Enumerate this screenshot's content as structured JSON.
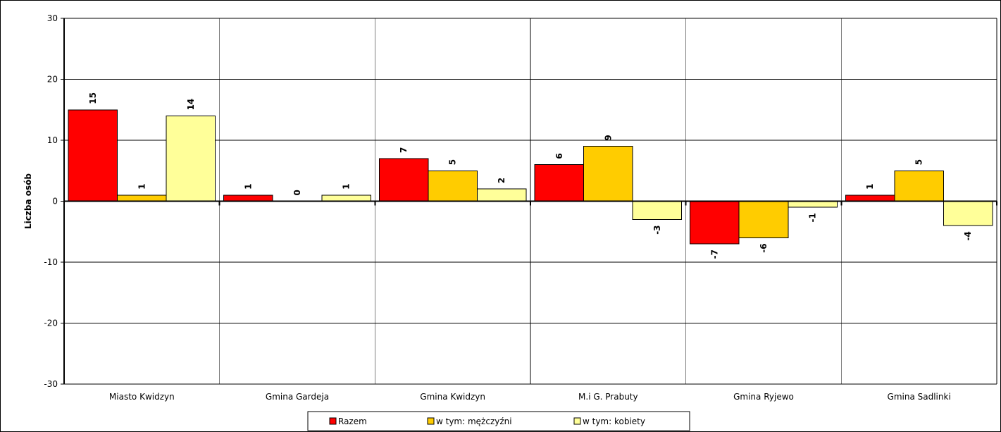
{
  "chart_data": {
    "type": "bar",
    "categories": [
      "Miasto Kwidzyn",
      "Gmina Gardeja",
      "Gmina Kwidzyn",
      "M.i G. Prabuty",
      "Gmina Ryjewo",
      "Gmina Sadlinki"
    ],
    "series": [
      {
        "name": "Razem",
        "values": [
          15,
          1,
          7,
          6,
          -7,
          1
        ],
        "color": "#ff0000"
      },
      {
        "name": "w tym: mężczyźni",
        "values": [
          1,
          0,
          5,
          9,
          -6,
          5
        ],
        "color": "#ffcc00"
      },
      {
        "name": "w tym: kobiety",
        "values": [
          14,
          1,
          2,
          -3,
          -1,
          -4
        ],
        "color": "#ffff99"
      }
    ],
    "title": "",
    "xlabel": "",
    "ylabel": "Liczba osób",
    "ylim": [
      -30,
      30
    ],
    "yticks": [
      30,
      20,
      10,
      0,
      -10,
      -20,
      -30
    ],
    "grid": true,
    "legend_position": "bottom"
  }
}
